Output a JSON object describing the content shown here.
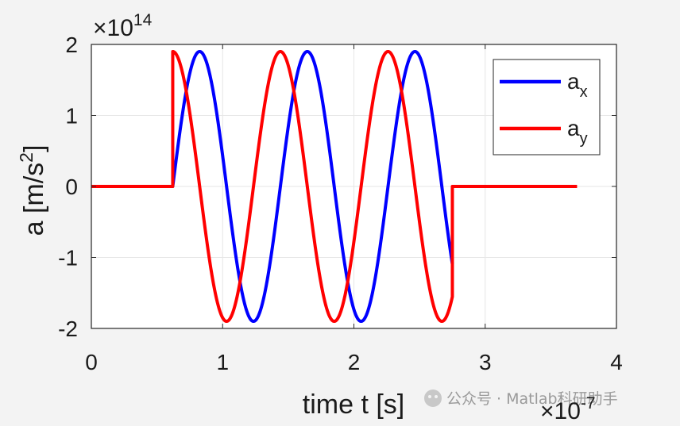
{
  "chart_data": {
    "type": "line",
    "xlabel": "time  t  [s]",
    "ylabel_main": "a  [m/s",
    "ylabel_sup": "2",
    "ylabel_tail": "]",
    "x_exponent_label": "×10",
    "x_exponent_power": "-7",
    "y_exponent_label": "×10",
    "y_exponent_power": "14",
    "xlim": [
      0,
      4
    ],
    "ylim": [
      -2,
      2
    ],
    "x_ticks": [
      0,
      1,
      2,
      3,
      4
    ],
    "y_ticks": [
      -2,
      -1,
      0,
      1,
      2
    ],
    "x_tick_labels": [
      "0",
      "1",
      "2",
      "3",
      "4"
    ],
    "y_tick_labels": [
      "-2",
      "-1",
      "0",
      "1",
      "2"
    ],
    "grid": true,
    "legend_position": "top-right",
    "pulse": {
      "t_start": 0.62,
      "t_end": 2.75,
      "t_max": 3.7,
      "period": 0.82,
      "amplitude": 1.9
    },
    "series": [
      {
        "name_base": "a",
        "name_sub": "x",
        "color": "#0000ff",
        "phase": "sin",
        "end_value": -1.5
      },
      {
        "name_base": "a",
        "name_sub": "y",
        "color": "#ff0000",
        "phase": "cos",
        "end_value": 0
      }
    ]
  },
  "watermark": {
    "text": "公众号 · Matlab科研助手"
  }
}
